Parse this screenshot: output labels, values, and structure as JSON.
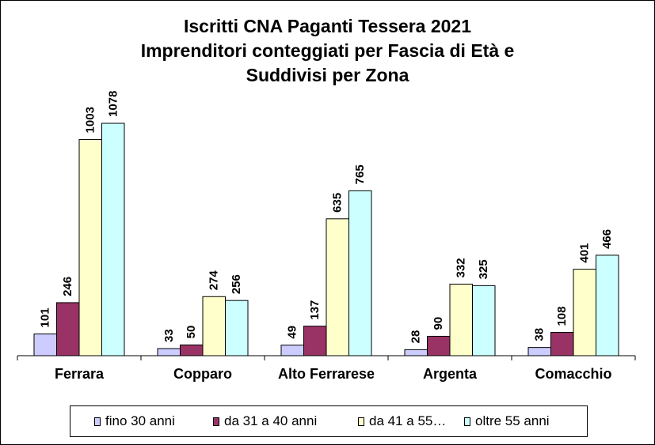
{
  "chart_data": {
    "type": "bar",
    "title": [
      "Iscritti CNA  Paganti Tessera 2021",
      "Imprenditori conteggiati  per Fascia di Età e",
      "Suddivisi per Zona"
    ],
    "categories": [
      "Ferrara",
      "Copparo",
      "Alto Ferrarese",
      "Argenta",
      "Comacchio"
    ],
    "series": [
      {
        "name": "fino 30 anni",
        "color": "#CCCCFF",
        "values": [
          101,
          33,
          49,
          28,
          38
        ]
      },
      {
        "name": "da 31 a 40 anni",
        "color": "#993366",
        "values": [
          246,
          50,
          137,
          90,
          108
        ]
      },
      {
        "name": "da 41 a 55…",
        "color": "#FFFFCC",
        "values": [
          1003,
          274,
          635,
          332,
          401
        ]
      },
      {
        "name": "oltre 55 anni",
        "color": "#CCFFFF",
        "values": [
          1078,
          256,
          765,
          325,
          466
        ]
      }
    ],
    "ylim": [
      0,
      1100
    ],
    "xlabel": "",
    "ylabel": "",
    "legend": "bottom",
    "grid": false
  }
}
